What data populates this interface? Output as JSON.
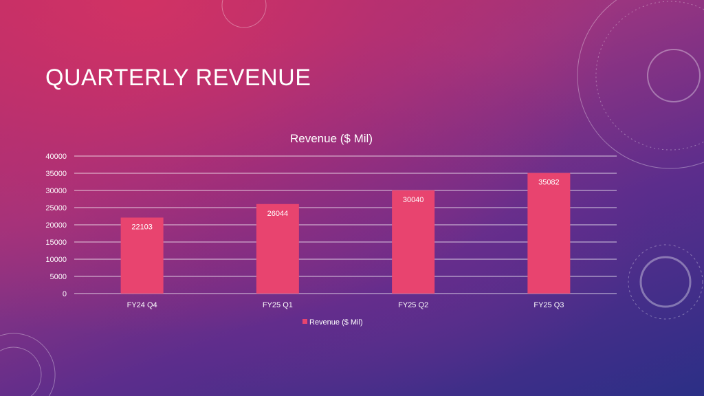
{
  "slide": {
    "title": "QUARTERLY REVENUE"
  },
  "chart_data": {
    "type": "bar",
    "title": "Revenue ($ Mil)",
    "categories": [
      "FY24 Q4",
      "FY25 Q1",
      "FY25 Q2",
      "FY25 Q3"
    ],
    "series": [
      {
        "name": "Revenue ($ Mil)",
        "values": [
          22103,
          26044,
          30040,
          35082
        ],
        "color": "#e8446f"
      }
    ],
    "data_labels": [
      "22103",
      "26044",
      "30040",
      "35082"
    ],
    "ylim": [
      0,
      40000
    ],
    "yticks": [
      "0",
      "5000",
      "10000",
      "15000",
      "20000",
      "25000",
      "30000",
      "35000",
      "40000"
    ],
    "xlabel": "",
    "ylabel": "",
    "grid": true,
    "legend": {
      "position": "bottom",
      "label": "Revenue ($ Mil)"
    }
  }
}
